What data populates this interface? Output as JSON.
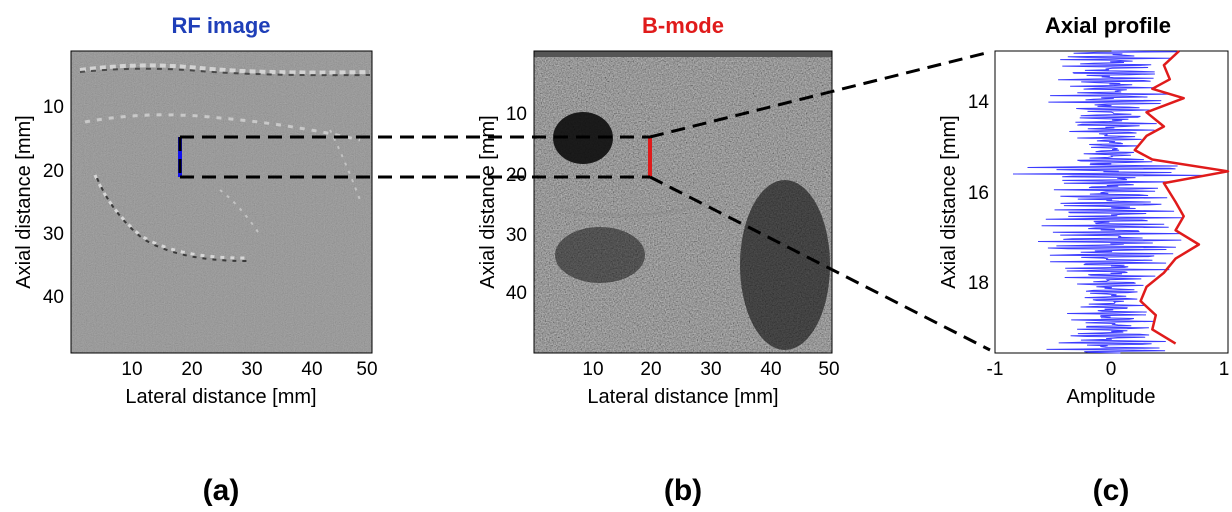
{
  "panels": [
    {
      "id": "a",
      "title": "RF image",
      "title_color": "#1f3fb8",
      "caption": "(a)",
      "xlabel": "Lateral distance [mm]",
      "ylabel": "Axial distance [mm]",
      "xticks": [
        "10",
        "20",
        "30",
        "40",
        "50"
      ],
      "yticks": [
        "10",
        "20",
        "30",
        "40"
      ],
      "marker_color": "#1010ee"
    },
    {
      "id": "b",
      "title": "B-mode",
      "title_color": "#e01b1b",
      "caption": "(b)",
      "xlabel": "Lateral distance [mm]",
      "ylabel": "Axial distance [mm]",
      "xticks": [
        "10",
        "20",
        "30",
        "40",
        "50"
      ],
      "yticks": [
        "10",
        "20",
        "30",
        "40"
      ],
      "marker_color": "#e01b1b"
    },
    {
      "id": "c",
      "title": "Axial profile",
      "title_color": "#000000",
      "caption": "(c)",
      "xlabel": "Amplitude",
      "ylabel": "Axial distance [mm]",
      "xticks": [
        "-1",
        "0",
        "1"
      ],
      "yticks": [
        "14",
        "16",
        "18"
      ]
    }
  ],
  "chart_data": {
    "type": "line",
    "title": "Axial profile",
    "xlabel": "Amplitude",
    "ylabel": "Axial distance [mm]",
    "xlim": [
      -1,
      1
    ],
    "ylim": [
      13.2,
      19.6
    ],
    "series": [
      {
        "color": "#3c3cff",
        "style": "rf-signal",
        "values_hint": "oscillating RF trace between -0.9 and 1"
      },
      {
        "color": "#e01b1b",
        "style": "envelope",
        "points": [
          [
            0.58,
            13.2
          ],
          [
            0.45,
            13.5
          ],
          [
            0.5,
            13.8
          ],
          [
            0.35,
            14.0
          ],
          [
            0.62,
            14.2
          ],
          [
            0.3,
            14.5
          ],
          [
            0.45,
            14.8
          ],
          [
            0.3,
            15.0
          ],
          [
            0.2,
            15.3
          ],
          [
            0.35,
            15.5
          ],
          [
            1.0,
            15.75
          ],
          [
            0.45,
            16.0
          ],
          [
            0.55,
            16.4
          ],
          [
            0.62,
            16.7
          ],
          [
            0.55,
            17.0
          ],
          [
            0.75,
            17.3
          ],
          [
            0.55,
            17.6
          ],
          [
            0.45,
            17.9
          ],
          [
            0.3,
            18.2
          ],
          [
            0.25,
            18.5
          ],
          [
            0.38,
            18.8
          ],
          [
            0.35,
            19.1
          ],
          [
            0.55,
            19.4
          ]
        ]
      }
    ]
  }
}
